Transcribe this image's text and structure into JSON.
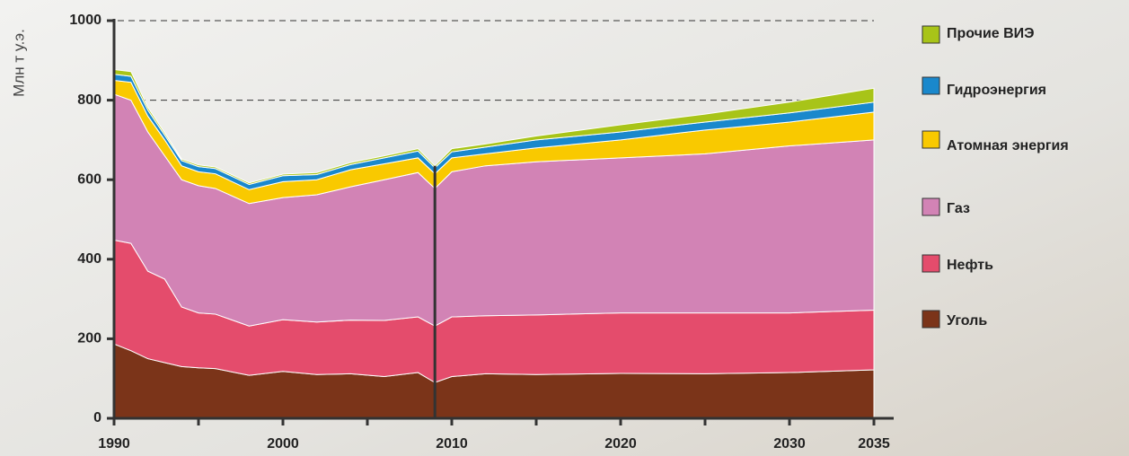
{
  "chart_data": {
    "type": "stacked_area",
    "y_label": "Млн т у.э.",
    "x": [
      1990,
      1991,
      1992,
      1993,
      1994,
      1995,
      1996,
      1998,
      2000,
      2002,
      2004,
      2006,
      2008,
      2009,
      2010,
      2012,
      2015,
      2020,
      2025,
      2030,
      2035
    ],
    "series": [
      {
        "name": "Уголь",
        "color": "#7b3419",
        "values": [
          187,
          170,
          150,
          140,
          130,
          127,
          125,
          108,
          118,
          110,
          112,
          105,
          115,
          90,
          105,
          112,
          110,
          113,
          112,
          115,
          122
        ]
      },
      {
        "name": "Нефть",
        "color": "#e44c6c",
        "values": [
          261,
          270,
          220,
          210,
          150,
          138,
          137,
          124,
          130,
          132,
          135,
          141,
          140,
          142,
          150,
          146,
          150,
          152,
          153,
          150,
          150
        ]
      },
      {
        "name": "Газ",
        "color": "#d283b5",
        "values": [
          367,
          360,
          350,
          310,
          320,
          320,
          316,
          308,
          307,
          320,
          335,
          354,
          363,
          346,
          365,
          377,
          385,
          390,
          400,
          420,
          428
        ]
      },
      {
        "name": "Атомная энергия",
        "color": "#f9c900",
        "values": [
          35,
          45,
          40,
          40,
          35,
          35,
          37,
          35,
          40,
          38,
          43,
          40,
          37,
          37,
          35,
          30,
          35,
          45,
          60,
          60,
          70
        ]
      },
      {
        "name": "Гидроэнергия",
        "color": "#1a88cc",
        "values": [
          15,
          15,
          15,
          12,
          13,
          13,
          13,
          13,
          15,
          13,
          13,
          15,
          17,
          15,
          15,
          17,
          20,
          20,
          20,
          23,
          25
        ]
      },
      {
        "name": "Прочие ВИЭ",
        "color": "#a8c418",
        "values": [
          12,
          12,
          7,
          6,
          4,
          4,
          4,
          4,
          4,
          5,
          5,
          5,
          6,
          5,
          8,
          8,
          10,
          18,
          20,
          27,
          35
        ]
      }
    ],
    "xlim": [
      1990,
      2035
    ],
    "xticks": [
      1990,
      2000,
      2010,
      2020,
      2030,
      2035
    ],
    "x_minor_ticks": [
      1995,
      2005,
      2015,
      2025
    ],
    "ylim": [
      0,
      1000
    ],
    "yticks": [
      0,
      200,
      400,
      600,
      800,
      1000
    ],
    "dashed_grid": [
      800,
      1000
    ],
    "divider_x": 2009
  }
}
